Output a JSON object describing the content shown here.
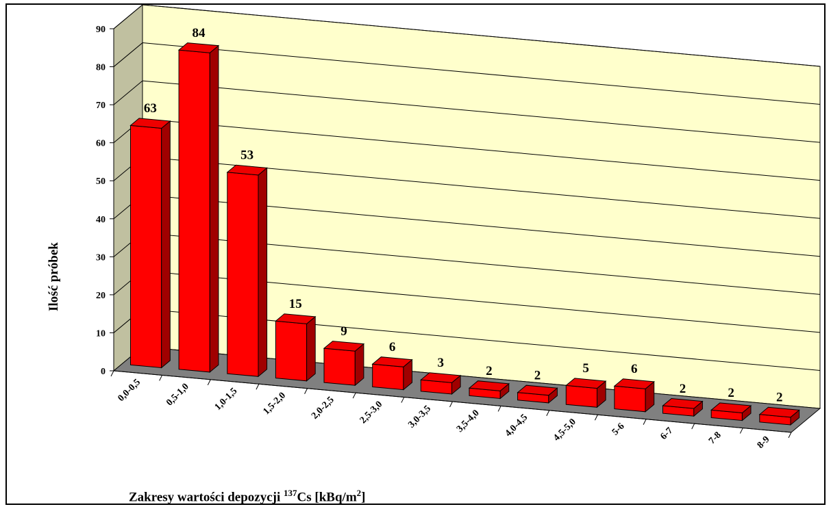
{
  "chart_data": {
    "type": "bar",
    "style": "3d-column",
    "categories": [
      "0,0-0,5",
      "0,5-1,0",
      "1,0-1,5",
      "1,5-2,0",
      "2,0-2,5",
      "2,5-3,0",
      "3,0-3,5",
      "3,5-4,0",
      "4,0-4,5",
      "4,5-5,0",
      "5-6",
      "6-7",
      "7-8",
      "8-9"
    ],
    "values": [
      63,
      84,
      53,
      15,
      9,
      6,
      3,
      2,
      2,
      5,
      6,
      2,
      2,
      2
    ],
    "value_labels": [
      "63",
      "84",
      "53",
      "15",
      "9",
      "6",
      "3",
      "2",
      "2",
      "5",
      "6",
      "2",
      "2",
      "2"
    ],
    "ylabel": "Ilość próbek",
    "xlabel": {
      "prefix": "Zakresy wartości depozycji ",
      "isotope_mass": "137",
      "isotope": "Cs [kBq/m",
      "unit_power": "2",
      "suffix": "]"
    },
    "ylim": [
      0,
      90
    ],
    "yticks": [
      "0",
      "10",
      "20",
      "30",
      "40",
      "50",
      "60",
      "70",
      "80",
      "90"
    ],
    "grid": true,
    "legend": "none",
    "colors": {
      "bar_front": "#ff0000",
      "bar_top": "#ee0000",
      "bar_side": "#a00000",
      "back_wall": "#ffffcc",
      "side_wall": "#c0c0a0",
      "floor": "#808080"
    }
  }
}
